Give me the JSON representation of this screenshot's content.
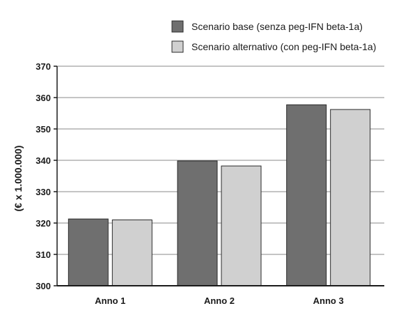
{
  "chart_data": {
    "type": "bar",
    "categories": [
      "Anno 1",
      "Anno 2",
      "Anno 3"
    ],
    "series": [
      {
        "name": "Scenario base (senza peg-IFN beta-1a)",
        "values": [
          321.3,
          339.8,
          357.7
        ],
        "color": "#6f6f6f"
      },
      {
        "name": "Scenario alternativo (con peg-IFN beta-1a)",
        "values": [
          321.0,
          338.2,
          356.2
        ],
        "color": "#d0d0d0"
      }
    ],
    "title": "",
    "xlabel": "",
    "ylabel": "(€ x 1.000.000)",
    "ylim": [
      300,
      370
    ],
    "yticks": [
      300,
      310,
      320,
      330,
      340,
      350,
      360,
      370
    ],
    "grid": true,
    "legend_position": "top-right"
  }
}
